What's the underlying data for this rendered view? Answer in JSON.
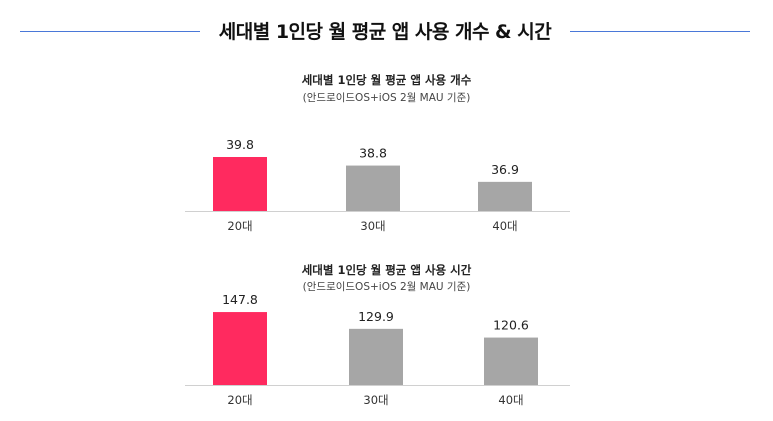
{
  "header": {
    "title": "세대별 1인당 월 평균 앱 사용 개수 & 시간"
  },
  "colors": {
    "highlight": "#ff2a5f",
    "default_bar": "#a6a6a6",
    "rule": "#4a78d8",
    "baseline": "#d0d0d0"
  },
  "chart_data": [
    {
      "type": "bar",
      "title": "세대별 1인당 월 평균 앱 사용 개수",
      "subtitle": "(안드로이드OS+iOS 2월 MAU 기준)",
      "categories": [
        "20대",
        "30대",
        "40대"
      ],
      "values": [
        39.8,
        38.8,
        36.9
      ],
      "value_labels": [
        "39.8",
        "38.8",
        "36.9"
      ],
      "highlight_index": 0,
      "ylim": [
        33.5,
        40.5
      ],
      "grid": false,
      "legend": "none"
    },
    {
      "type": "bar",
      "title": "세대별 1인당 월 평균 앱 사용 시간",
      "subtitle": "(안드로이드OS+iOS 2월 MAU 기준)",
      "categories": [
        "20대",
        "30대",
        "40대"
      ],
      "values": [
        147.8,
        129.9,
        120.6
      ],
      "value_labels": [
        "147.8",
        "129.9",
        "120.6"
      ],
      "highlight_index": 0,
      "ylim": [
        70,
        150
      ],
      "grid": false,
      "legend": "none"
    }
  ]
}
